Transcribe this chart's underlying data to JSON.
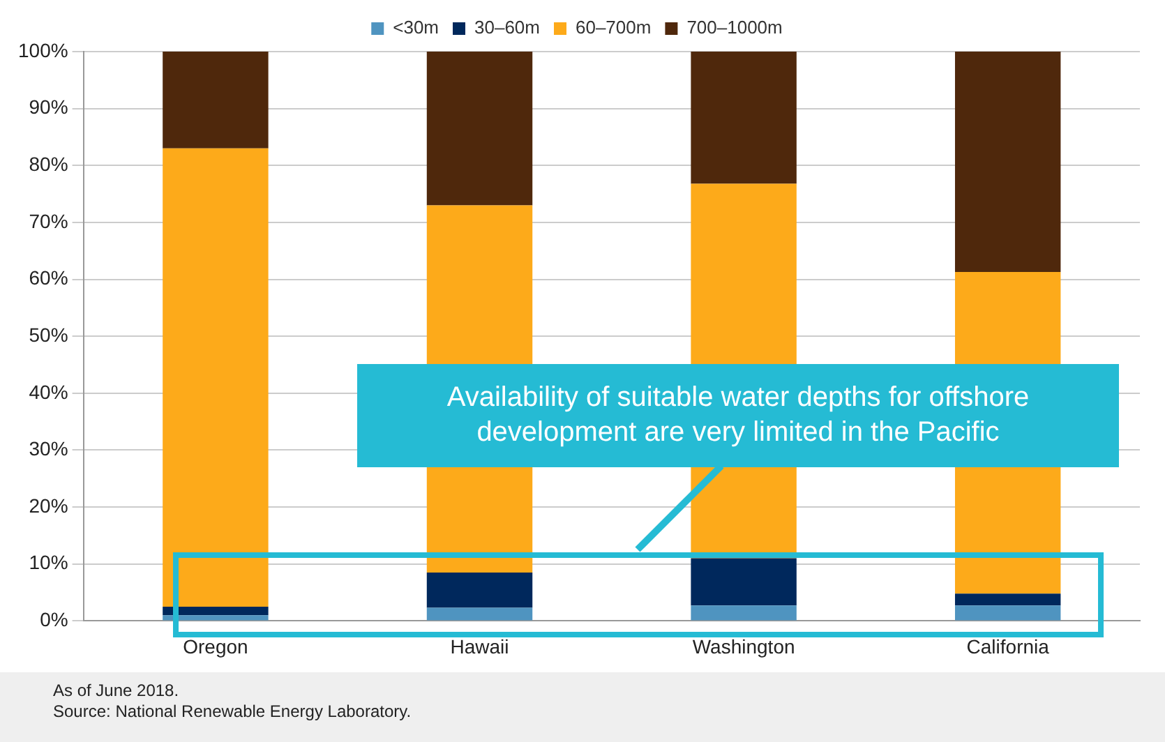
{
  "chart_data": {
    "type": "bar",
    "stacked": true,
    "categories": [
      "Oregon",
      "Hawaii",
      "Washington",
      "California"
    ],
    "series": [
      {
        "name": "<30m",
        "color": "#4f94c0",
        "values": [
          1,
          2.3,
          2.7,
          2.7
        ]
      },
      {
        "name": "30–60m",
        "color": "#00285c",
        "values": [
          1.5,
          6.2,
          8.3,
          2.1
        ]
      },
      {
        "name": "60–700m",
        "color": "#fdaa1a",
        "values": [
          80.5,
          64.5,
          65.8,
          56.5
        ]
      },
      {
        "name": "700–1000m",
        "color": "#4f280c",
        "values": [
          17,
          27,
          23.2,
          38.7
        ]
      }
    ],
    "ylim": [
      0,
      100
    ],
    "yticks": [
      {
        "value": 0,
        "label": "0%"
      },
      {
        "value": 10,
        "label": "10%"
      },
      {
        "value": 20,
        "label": "20%"
      },
      {
        "value": 30,
        "label": "30%"
      },
      {
        "value": 40,
        "label": "40%"
      },
      {
        "value": 50,
        "label": "50%"
      },
      {
        "value": 60,
        "label": "60%"
      },
      {
        "value": 70,
        "label": "70%"
      },
      {
        "value": 80,
        "label": "80%"
      },
      {
        "value": 90,
        "label": "90%"
      },
      {
        "value": 100,
        "label": "100%"
      }
    ],
    "grid": "y",
    "legend": "top",
    "annotations": [
      "Availability of suitable water depths for offshore development are very limited in the Pacific",
      "As of June 2018.",
      "Source: National Renewable Energy Laboratory."
    ]
  }
}
